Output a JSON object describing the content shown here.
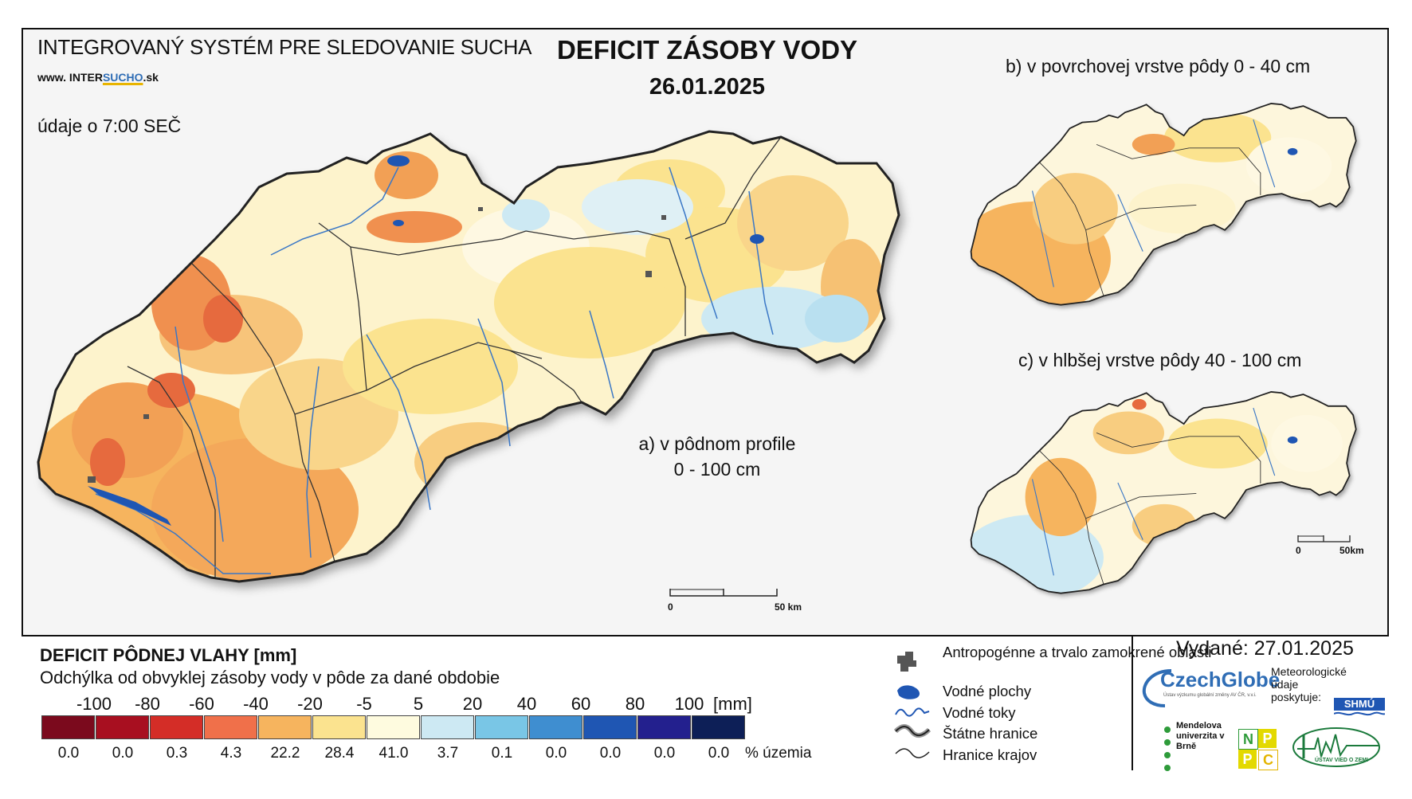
{
  "header": {
    "system_title": "INTEGROVANÝ SYSTÉM PRE SLEDOVANIE SUCHA",
    "website": {
      "prefix": "www. INTER",
      "highlight": "SUCHO",
      "suffix": ".sk"
    },
    "data_time": "údaje o 7:00 SEČ",
    "map_title": "DEFICIT ZÁSOBY VODY",
    "map_date": "26.01.2025"
  },
  "maps": {
    "main_label_line1": "a) v pôdnom profile",
    "main_label_line2": "0 - 100 cm",
    "b_label": "b) v povrchovej vrstve pôdy 0 - 40 cm",
    "c_label": "c) v hlbšej vrstve pôdy 40 - 100 cm",
    "main_scale": {
      "start": "0",
      "end": "50 km"
    },
    "small_scale": {
      "start": "0",
      "end": "50km"
    }
  },
  "legend": {
    "title": "DEFICIT PÔDNEJ VLAHY [mm]",
    "subtitle": "Odchýlka od obvyklej zásoby vody v pôde za dané obdobie",
    "ticks": [
      "-100",
      "-80",
      "-60",
      "-40",
      "-20",
      "-5",
      "5",
      "20",
      "40",
      "60",
      "80",
      "100"
    ],
    "unit": "[mm]",
    "colors": [
      "#7b0a1d",
      "#a80f20",
      "#d42d27",
      "#f0704a",
      "#f6b45e",
      "#fbe38f",
      "#fefbdf",
      "#cde9f3",
      "#79c6e6",
      "#3f8ed0",
      "#1f56b3",
      "#23208e",
      "#0d1f57"
    ],
    "percentages": [
      "0.0",
      "0.0",
      "0.3",
      "4.3",
      "22.2",
      "28.4",
      "41.0",
      "3.7",
      "0.1",
      "0.0",
      "0.0",
      "0.0",
      "0.0"
    ],
    "percent_label": "% územia"
  },
  "symbols": {
    "items": [
      {
        "label": "Antropogénne a trvalo zamokrené oblasti",
        "icon": "urban-area-icon"
      },
      {
        "label": "Vodné plochy",
        "icon": "water-body-icon"
      },
      {
        "label": "Vodné toky",
        "icon": "river-icon"
      },
      {
        "label": "Štátne hranice",
        "icon": "state-border-icon"
      },
      {
        "label": "Hranice krajov",
        "icon": "region-border-icon"
      }
    ]
  },
  "footer": {
    "issued": "Vydané: 27.01.2025",
    "czechglobe": "CzechGlobe",
    "czechglobe_sub": "Ústav výzkumu globální změny AV ČR, v.v.i.",
    "meteo_text": "Meteorologické údaje poskytuje:",
    "shmu": "SHMÚ",
    "mendel": "Mendelova univerzita v Brně",
    "nppc": [
      "N",
      "P",
      "P",
      "C"
    ],
    "uvz": "ÚSTAV VIED O ZEMI"
  }
}
